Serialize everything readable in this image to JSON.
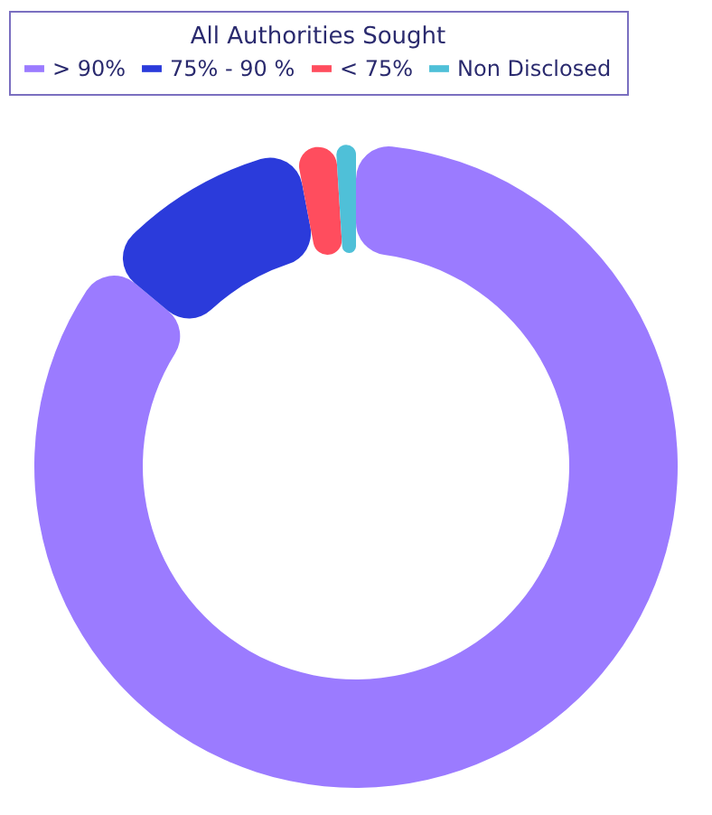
{
  "chart_data": {
    "type": "donut",
    "legend_title": "All Authorities Sought",
    "categories": [
      "> 90%",
      "75% - 90 %",
      "< 75%",
      "Non Disclosed"
    ],
    "values": [
      86,
      11,
      2,
      1
    ],
    "colors": [
      "#9b7bff",
      "#2b3bdb",
      "#ff4d5e",
      "#4fc0d8"
    ],
    "legend": "top"
  }
}
